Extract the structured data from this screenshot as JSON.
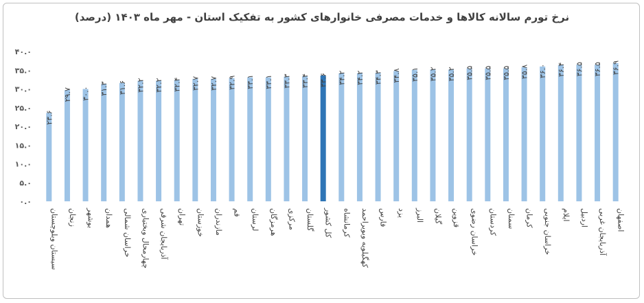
{
  "chart_data": {
    "type": "bar",
    "title": "نرخ تورم سالانه کالاها و خدمات مصرفی خانوارهای کشور به تفکیک استان - مهر ماه ۱۴۰۳ (درصد)",
    "ylim": [
      0,
      40
    ],
    "yticks": [
      "۰.۰",
      "۵.۰",
      "۱۰.۰",
      "۱۵.۰",
      "۲۰.۰",
      "۲۵.۰",
      "۳۰.۰",
      "۳۵.۰",
      "۴۰.۰"
    ],
    "grid": false,
    "legend": "none",
    "colors": {
      "bar": "#9dc3e6",
      "highlight": "#2e75b6"
    },
    "highlight_category": "کل کشور",
    "categories": [
      "سیستان وبلوچستان",
      "زنجان",
      "بوشهر",
      "همدان",
      "خراسان شمالی",
      "چهارمحال وبختیاری",
      "آذربایجان شرقی",
      "تهران",
      "خوزستان",
      "مازندران",
      "قم",
      "لرستان",
      "هرمزگان",
      "مرکزی",
      "گلستان",
      "کل کشور",
      "کرمانشاه",
      "کهگیلویه وبویراحمد",
      "فارس",
      "یزد",
      "البرز",
      "گیلان",
      "قزوین",
      "خراسان رضوی",
      "کردستان",
      "سمنان",
      "کرمان",
      "خراسان جنوبی",
      "ایلام",
      "اردبیل",
      "آذربایجان غربی",
      "اصفهان"
    ],
    "values": [
      23.6,
      29.7,
      30.0,
      31.3,
      31.6,
      32.2,
      32.2,
      32.4,
      32.7,
      32.7,
      32.9,
      33.1,
      33.1,
      33.3,
      33.4,
      33.6,
      34.2,
      34.2,
      34.3,
      34.8,
      35.1,
      35.2,
      35.2,
      35.5,
      35.5,
      35.5,
      35.8,
      36.0,
      36.4,
      36.5,
      36.5,
      36.9
    ],
    "value_labels": [
      "۲۳.۶",
      "۲۹.۷",
      "۳۰.۰",
      "۳۱.۳",
      "۳۱.۶",
      "۳۲.۲",
      "۳۲.۲",
      "۳۲.۴",
      "۳۲.۷",
      "۳۲.۷",
      "۳۲.۹",
      "۳۳.۱",
      "۳۳.۱",
      "۳۳.۳",
      "۳۳.۴",
      "۳۳.۶",
      "۳۴.۲",
      "۳۴.۲",
      "۳۴.۳",
      "۳۴.۸",
      "۳۵.۱",
      "۳۵.۲",
      "۳۵.۲",
      "۳۵.۵",
      "۳۵.۵",
      "۳۵.۵",
      "۳۵.۸",
      "۳۶.۰",
      "۳۶.۴",
      "۳۶.۵",
      "۳۶.۵",
      "۳۶.۹"
    ]
  }
}
